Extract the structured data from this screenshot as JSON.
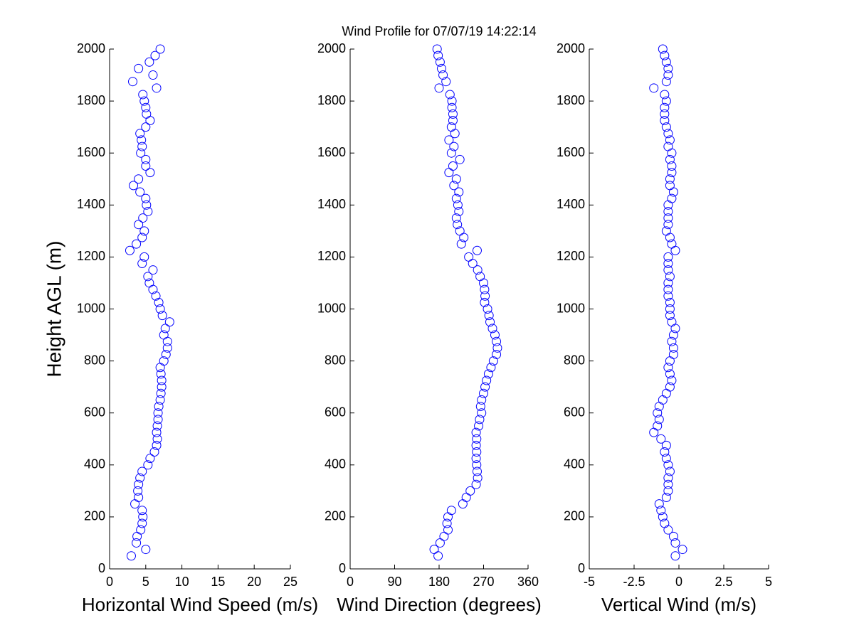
{
  "title": "Wind Profile for  07/07/19 14:22:14",
  "chart_data": [
    {
      "type": "scatter",
      "xlabel": "Horizontal Wind Speed (m/s)",
      "ylabel": "Height AGL (m)",
      "color": "#0000ff",
      "xlim": [
        0,
        25
      ],
      "xticks": [
        0,
        5,
        10,
        15,
        20,
        25
      ],
      "ylim": [
        0,
        2000
      ],
      "yticks": [
        0,
        200,
        400,
        600,
        800,
        1000,
        1200,
        1400,
        1600,
        1800,
        2000
      ],
      "x": [
        3,
        5,
        3.7,
        3.8,
        4.3,
        4.5,
        4.6,
        4.5,
        3.5,
        4,
        3.9,
        4,
        4.2,
        4.5,
        5.3,
        5.6,
        6.2,
        6.5,
        6.6,
        6.5,
        6.6,
        6.7,
        6.7,
        6.8,
        7,
        7.1,
        7.2,
        7.2,
        7.1,
        7,
        7.5,
        7.8,
        8,
        8,
        7.5,
        7.7,
        8.3,
        7.3,
        7,
        6.8,
        6.4,
        6,
        5.5,
        5.3,
        6,
        4.5,
        4.8,
        2.8,
        3.7,
        4.5,
        4.8,
        4,
        4.6,
        5.3,
        5.1,
        5,
        4.2,
        3.3,
        4,
        5.6,
        5,
        5,
        4.3,
        4.5,
        4.4,
        4.2,
        5,
        5.6,
        5.1,
        5,
        4.8,
        4.6,
        6.5,
        3.2,
        6,
        4,
        5.5,
        6.3,
        7
      ],
      "y": [
        50,
        75,
        100,
        125,
        150,
        175,
        200,
        225,
        250,
        275,
        300,
        325,
        350,
        375,
        400,
        425,
        450,
        475,
        500,
        525,
        550,
        575,
        600,
        625,
        650,
        675,
        700,
        725,
        750,
        775,
        800,
        825,
        850,
        875,
        900,
        925,
        950,
        975,
        1000,
        1025,
        1050,
        1075,
        1100,
        1125,
        1150,
        1175,
        1200,
        1225,
        1250,
        1275,
        1300,
        1325,
        1350,
        1375,
        1400,
        1425,
        1450,
        1475,
        1500,
        1525,
        1550,
        1575,
        1600,
        1625,
        1650,
        1675,
        1700,
        1725,
        1750,
        1775,
        1800,
        1825,
        1850,
        1875,
        1900,
        1925,
        1950,
        1975,
        2000
      ]
    },
    {
      "type": "scatter",
      "xlabel": "Wind Direction (degrees)",
      "color": "#0000ff",
      "xlim": [
        0,
        360
      ],
      "xticks": [
        0,
        90,
        180,
        270,
        360
      ],
      "ylim": [
        0,
        2000
      ],
      "yticks": [
        0,
        200,
        400,
        600,
        800,
        1000,
        1200,
        1400,
        1600,
        1800,
        2000
      ],
      "x": [
        178,
        170,
        182,
        190,
        198,
        196,
        198,
        205,
        228,
        235,
        243,
        255,
        258,
        257,
        256,
        255,
        256,
        255,
        256,
        255,
        260,
        262,
        266,
        264,
        266,
        270,
        273,
        276,
        280,
        285,
        290,
        296,
        298,
        296,
        293,
        288,
        283,
        281,
        278,
        272,
        273,
        272,
        270,
        263,
        258,
        248,
        240,
        257,
        225,
        230,
        222,
        217,
        215,
        220,
        218,
        215,
        220,
        210,
        215,
        200,
        208,
        222,
        205,
        210,
        200,
        212,
        205,
        208,
        208,
        206,
        206,
        202,
        180,
        194,
        188,
        185,
        182,
        178,
        176
      ],
      "y": [
        50,
        75,
        100,
        125,
        150,
        175,
        200,
        225,
        250,
        275,
        300,
        325,
        350,
        375,
        400,
        425,
        450,
        475,
        500,
        525,
        550,
        575,
        600,
        625,
        650,
        675,
        700,
        725,
        750,
        775,
        800,
        825,
        850,
        875,
        900,
        925,
        950,
        975,
        1000,
        1025,
        1050,
        1075,
        1100,
        1125,
        1150,
        1175,
        1200,
        1225,
        1250,
        1275,
        1300,
        1325,
        1350,
        1375,
        1400,
        1425,
        1450,
        1475,
        1500,
        1525,
        1550,
        1575,
        1600,
        1625,
        1650,
        1675,
        1700,
        1725,
        1750,
        1775,
        1800,
        1825,
        1850,
        1875,
        1900,
        1925,
        1950,
        1975,
        2000
      ]
    },
    {
      "type": "scatter",
      "xlabel": "Vertical Wind (m/s)",
      "color": "#0000ff",
      "xlim": [
        -5,
        5
      ],
      "xticks": [
        -5,
        -2.5,
        0,
        2.5,
        5
      ],
      "ylim": [
        0,
        2000
      ],
      "yticks": [
        0,
        200,
        400,
        600,
        800,
        1000,
        1200,
        1400,
        1600,
        1800,
        2000
      ],
      "x": [
        -0.2,
        0.2,
        -0.2,
        -0.3,
        -0.6,
        -0.8,
        -0.9,
        -1,
        -1.1,
        -0.7,
        -0.6,
        -0.6,
        -0.6,
        -0.5,
        -0.6,
        -0.7,
        -0.8,
        -0.7,
        -1,
        -1.4,
        -1.2,
        -1.1,
        -1.2,
        -1.1,
        -0.9,
        -0.7,
        -0.5,
        -0.4,
        -0.5,
        -0.6,
        -0.5,
        -0.3,
        -0.3,
        -0.4,
        -0.3,
        -0.2,
        -0.4,
        -0.5,
        -0.5,
        -0.5,
        -0.6,
        -0.6,
        -0.6,
        -0.5,
        -0.6,
        -0.6,
        -0.6,
        -0.2,
        -0.4,
        -0.5,
        -0.7,
        -0.6,
        -0.6,
        -0.6,
        -0.6,
        -0.4,
        -0.3,
        -0.5,
        -0.5,
        -0.4,
        -0.4,
        -0.5,
        -0.4,
        -0.6,
        -0.5,
        -0.6,
        -0.7,
        -0.8,
        -0.8,
        -0.8,
        -0.7,
        -0.8,
        -1.4,
        -0.7,
        -0.6,
        -0.6,
        -0.7,
        -0.8,
        -0.9
      ],
      "y": [
        50,
        75,
        100,
        125,
        150,
        175,
        200,
        225,
        250,
        275,
        300,
        325,
        350,
        375,
        400,
        425,
        450,
        475,
        500,
        525,
        550,
        575,
        600,
        625,
        650,
        675,
        700,
        725,
        750,
        775,
        800,
        825,
        850,
        875,
        900,
        925,
        950,
        975,
        1000,
        1025,
        1050,
        1075,
        1100,
        1125,
        1150,
        1175,
        1200,
        1225,
        1250,
        1275,
        1300,
        1325,
        1350,
        1375,
        1400,
        1425,
        1450,
        1475,
        1500,
        1525,
        1550,
        1575,
        1600,
        1625,
        1650,
        1675,
        1700,
        1725,
        1750,
        1775,
        1800,
        1825,
        1850,
        1875,
        1900,
        1925,
        1950,
        1975,
        2000
      ]
    }
  ]
}
